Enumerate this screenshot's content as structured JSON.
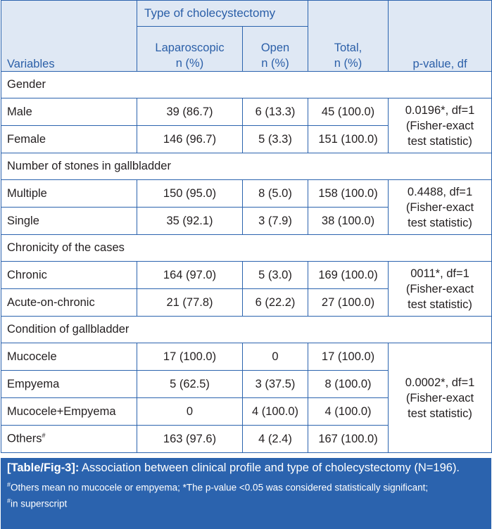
{
  "header": {
    "group_title": "Type of cholecystectomy",
    "variables": "Variables",
    "laparoscopic": "Laparoscopic",
    "open": "Open",
    "n_pct": "n (%)",
    "total": "Total,",
    "total_npct": "n (%)",
    "pvalue": "p-value, df"
  },
  "sections": [
    {
      "title": "Gender",
      "pvalue_line1": "0.0196*, df=1",
      "pvalue_line2": "(Fisher-exact",
      "pvalue_line3": "test statistic)",
      "rows": [
        {
          "label": "Male",
          "lap": "39 (86.7)",
          "open": "6 (13.3)",
          "total": "45 (100.0)"
        },
        {
          "label": "Female",
          "lap": "146 (96.7)",
          "open": "5 (3.3)",
          "total": "151 (100.0)"
        }
      ]
    },
    {
      "title": "Number of stones in gallbladder",
      "pvalue_line1": "0.4488, df=1",
      "pvalue_line2": "(Fisher-exact",
      "pvalue_line3": "test statistic)",
      "rows": [
        {
          "label": "Multiple",
          "lap": "150 (95.0)",
          "open": "8 (5.0)",
          "total": "158 (100.0)"
        },
        {
          "label": "Single",
          "lap": "35 (92.1)",
          "open": "3 (7.9)",
          "total": "38 (100.0)"
        }
      ]
    },
    {
      "title": "Chronicity of the cases",
      "pvalue_line1": "0011*, df=1",
      "pvalue_line2": "(Fisher-exact",
      "pvalue_line3": "test statistic)",
      "rows": [
        {
          "label": "Chronic",
          "lap": "164 (97.0)",
          "open": "5 (3.0)",
          "total": "169 (100.0)"
        },
        {
          "label": "Acute-on-chronic",
          "lap": "21 (77.8)",
          "open": "6 (22.2)",
          "total": "27 (100.0)"
        }
      ]
    },
    {
      "title": "Condition of gallbladder",
      "pvalue_line1": "0.0002*, df=1",
      "pvalue_line2": "(Fisher-exact",
      "pvalue_line3": "test statistic)",
      "rows": [
        {
          "label": "Mucocele",
          "lap": "17 (100.0)",
          "open": "0",
          "total": "17 (100.0)"
        },
        {
          "label": "Empyema",
          "lap": "5 (62.5)",
          "open": "3 (37.5)",
          "total": "8 (100.0)"
        },
        {
          "label": "Mucocele+Empyema",
          "lap": "0",
          "open": "4 (100.0)",
          "total": "4 (100.0)"
        },
        {
          "label": "Others",
          "label_sup": "#",
          "lap": "163 (97.6)",
          "open": "4 (2.4)",
          "total": "167 (100.0)"
        }
      ]
    }
  ],
  "caption": {
    "label": "[Table/Fig-3]:",
    "text": " Association between clinical profile and type of cholecystectomy (N=196).",
    "note_sup1": "#",
    "note_text1": "Others mean no mucocele or empyema; *The p-value <0.05 was considered statistically significant;",
    "note_sup2": "#",
    "note_text2": "in superscript"
  },
  "colors": {
    "border": "#2b63ae",
    "header_bg": "#dfe8f4",
    "header_text": "#2b5fa8",
    "caption_bg": "#2b63ae"
  }
}
